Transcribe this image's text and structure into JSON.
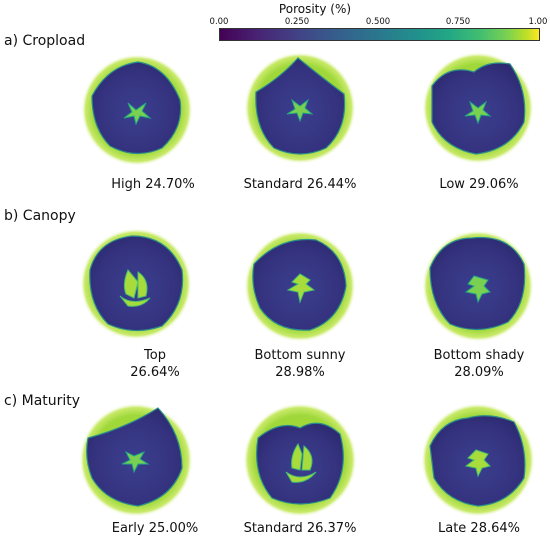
{
  "colorbar": {
    "title": "Porosity (%)",
    "ticks": [
      "0.00",
      "0.250",
      "0.500",
      "0.750",
      "1.00"
    ]
  },
  "rows": [
    {
      "title": "a) Cropload",
      "items": [
        {
          "label": "High 24.70%"
        },
        {
          "label": "Standard 26.44%"
        },
        {
          "label": "Low 29.06%"
        }
      ]
    },
    {
      "title": "b) Canopy",
      "items": [
        {
          "label": "Top",
          "value": "26.64%"
        },
        {
          "label": "Bottom sunny",
          "value": "28.98%"
        },
        {
          "label": "Bottom shady",
          "value": "28.09%"
        }
      ]
    },
    {
      "title": "c) Maturity",
      "items": [
        {
          "label": "Early 25.00%"
        },
        {
          "label": "Standard 26.37%"
        },
        {
          "label": "Late 28.64%"
        }
      ]
    }
  ]
}
